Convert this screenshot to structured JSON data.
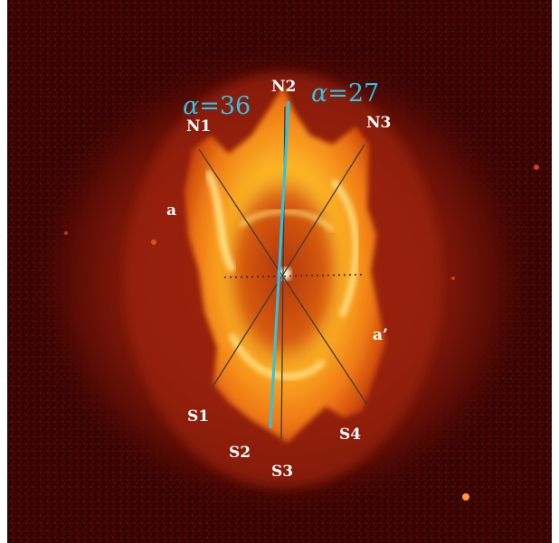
{
  "colors": {
    "background_dark": "#3a0402",
    "halo": "#8c1c0c",
    "nebula_core": "#ffd23a",
    "nebula_hot": "#fff6a8",
    "axis_line": "#2ec3e6",
    "guide_lines": "#3b3b3b",
    "label_text": "#ffffff"
  },
  "labels": {
    "n1": "N1",
    "n2": "N2",
    "n3": "N3",
    "s1": "S1",
    "s2": "S2",
    "s3": "S3",
    "s4": "S4",
    "a": "a",
    "a_prime": "a’"
  },
  "angles": {
    "symbol": "α",
    "left_value": "36",
    "right_value": "27"
  }
}
